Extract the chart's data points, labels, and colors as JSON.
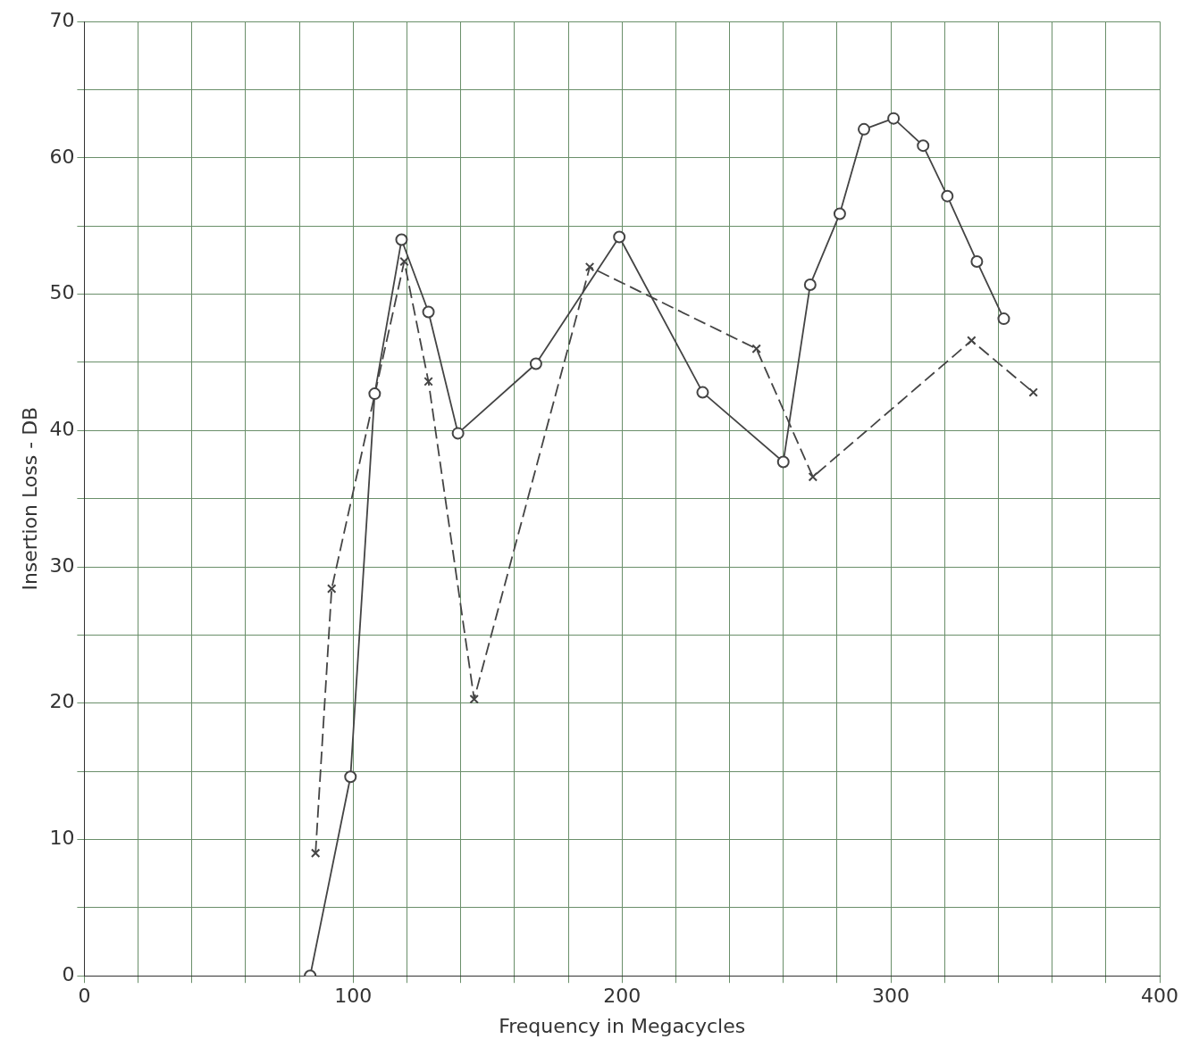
{
  "chart_data": {
    "type": "line",
    "xlabel": "Frequency in Megacycles",
    "ylabel": "Insertion Loss - DB",
    "xlim": [
      0,
      400
    ],
    "ylim": [
      0,
      70
    ],
    "xticks": [
      0,
      {
        "value": 20,
        "label": null
      },
      {
        "value": 40,
        "label": null
      },
      {
        "value": 60,
        "label": null
      },
      {
        "value": 80,
        "label": null
      },
      100,
      {
        "value": 120,
        "label": null
      },
      {
        "value": 140,
        "label": null
      },
      {
        "value": 160,
        "label": null
      },
      {
        "value": 180,
        "label": null
      },
      200,
      {
        "value": 220,
        "label": null
      },
      {
        "value": 240,
        "label": null
      },
      {
        "value": 260,
        "label": null
      },
      {
        "value": 280,
        "label": null
      },
      300,
      {
        "value": 320,
        "label": null
      },
      {
        "value": 340,
        "label": null
      },
      {
        "value": 360,
        "label": null
      },
      {
        "value": 380,
        "label": null
      },
      400
    ],
    "yticks": [
      0,
      {
        "value": 5,
        "label": null
      },
      10,
      {
        "value": 15,
        "label": null
      },
      20,
      {
        "value": 25,
        "label": null
      },
      30,
      {
        "value": 35,
        "label": null
      },
      40,
      {
        "value": 45,
        "label": null
      },
      50,
      {
        "value": 55,
        "label": null
      },
      60,
      {
        "value": 65,
        "label": null
      },
      70
    ],
    "grid": true,
    "legend": false,
    "series": [
      {
        "color": "#444444",
        "marker": "circle",
        "line_style": "solid",
        "x": [
          84,
          99,
          108,
          118,
          128,
          139,
          168,
          199,
          230,
          260,
          270,
          281,
          290,
          301,
          312,
          321,
          332,
          342
        ],
        "values": [
          0,
          14.6,
          42.7,
          54,
          48.7,
          39.8,
          44.9,
          54.2,
          42.8,
          37.7,
          50.7,
          55.9,
          62.1,
          62.9,
          60.9,
          57.2,
          52.4,
          48.2
        ]
      },
      {
        "color": "#444444",
        "marker": "cross",
        "line_style": "dashed",
        "x": [
          86,
          92,
          119,
          128,
          145,
          188,
          250,
          271,
          330,
          353
        ],
        "values": [
          9,
          28.4,
          52.4,
          43.6,
          20.3,
          52,
          46,
          36.6,
          46.6,
          42.8
        ]
      }
    ]
  }
}
